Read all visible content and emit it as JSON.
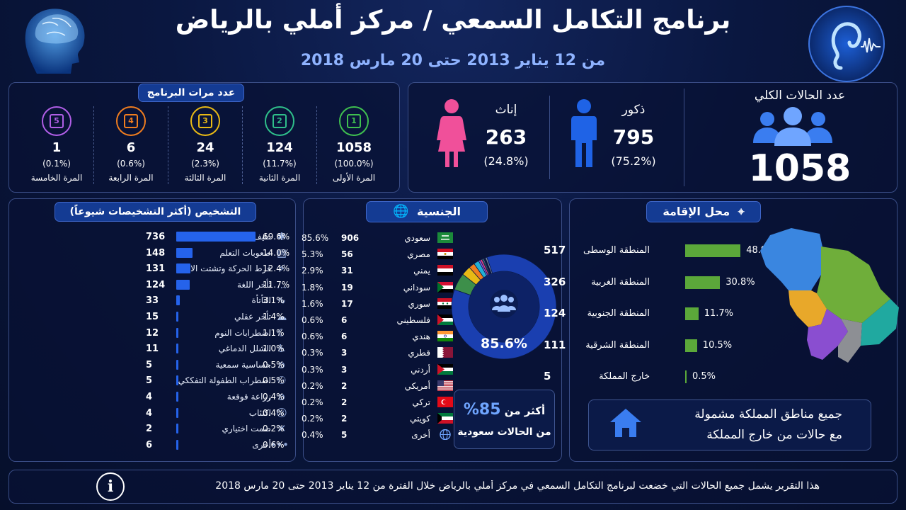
{
  "header": {
    "title": "برنامج التكامل السمعي / مركز أملي بالرياض",
    "subtitle": "من 12 يناير 2013 حتى 20 مارس 2018"
  },
  "rounds": {
    "title": "عدد مرات البرنامج",
    "items": [
      {
        "num": "1",
        "count": "1058",
        "pct": "(100.0%)",
        "label": "المرة الأولى",
        "color": "#3fbf4f"
      },
      {
        "num": "2",
        "count": "124",
        "pct": "(11.7%)",
        "label": "المرة الثانية",
        "color": "#2fbf8a"
      },
      {
        "num": "3",
        "count": "24",
        "pct": "(2.3%)",
        "label": "المرة الثالثة",
        "color": "#e8b915"
      },
      {
        "num": "4",
        "count": "6",
        "pct": "(0.6%)",
        "label": "المرة الرابعة",
        "color": "#f07d1f"
      },
      {
        "num": "5",
        "count": "1",
        "pct": "(0.1%)",
        "label": "المرة الخامسة",
        "color": "#b05ee6"
      }
    ]
  },
  "totals": {
    "total_label": "عدد الحالات الكلي",
    "total_value": "1058",
    "male_label": "ذكور",
    "male_value": "795",
    "male_pct": "(75.2%)",
    "female_label": "إناث",
    "female_value": "263",
    "female_pct": "(24.8%)",
    "male_color": "#1f63e6",
    "female_color": "#f0509a"
  },
  "diagnosis": {
    "title": "التشخيص (أكثر التشخيصات شيوعاً)",
    "rows": [
      {
        "label": "طيف التوحد",
        "value": 736,
        "pct": "69.6%",
        "icon": "puzzle-icon",
        "glyph": "✱"
      },
      {
        "label": "صعوبات التعلم",
        "value": 148,
        "pct": "14.0%",
        "icon": "book-icon",
        "glyph": "▤"
      },
      {
        "label": "فرط الحركة وتشتت الانتباه",
        "value": 131,
        "pct": "12.4%",
        "icon": "running-icon",
        "glyph": "⚡"
      },
      {
        "label": "تأخر اللغة",
        "value": 124,
        "pct": "11.7%",
        "icon": "speech-bubble-icon",
        "glyph": "…"
      },
      {
        "label": "التأتأة",
        "value": 33,
        "pct": "3.1%",
        "icon": "waveform-icon",
        "glyph": "∿"
      },
      {
        "label": "تأخر عقلي",
        "value": 15,
        "pct": "1.4%",
        "icon": "brain-icon",
        "glyph": "☁"
      },
      {
        "label": "اضطرابات النوم",
        "value": 12,
        "pct": "1.1%",
        "icon": "moon-icon",
        "glyph": "☾"
      },
      {
        "label": "الشلل الدماغي",
        "value": 11,
        "pct": "1.0%",
        "icon": "wheelchair-icon",
        "glyph": "♿"
      },
      {
        "label": "حساسية سمعية",
        "value": 5,
        "pct": "0.5%",
        "icon": "ear-icon",
        "glyph": "ʚ"
      },
      {
        "label": "اضطراب الطفولة التفككي",
        "value": 5,
        "pct": "0.5%",
        "icon": "family-icon",
        "glyph": "⚇"
      },
      {
        "label": "زراعة قوقعة",
        "value": 4,
        "pct": "0.4%",
        "icon": "cochlear-icon",
        "glyph": "ʚ"
      },
      {
        "label": "اكتئاب",
        "value": 4,
        "pct": "0.4%",
        "icon": "sad-face-icon",
        "glyph": "☹"
      },
      {
        "label": "صمت اختياري",
        "value": 2,
        "pct": "0.2%",
        "icon": "mute-icon",
        "glyph": "✕"
      },
      {
        "label": "أخرى",
        "value": 6,
        "pct": "0.6%",
        "icon": "more-icon",
        "glyph": "•••"
      }
    ]
  },
  "nationality": {
    "title": "الجنسية",
    "rows": [
      {
        "label": "سعودي",
        "value": "906",
        "pct": "85.6%",
        "flag": "saudi-flag-icon"
      },
      {
        "label": "مصري",
        "value": "56",
        "pct": "5.3%",
        "flag": "egypt-flag-icon"
      },
      {
        "label": "يمني",
        "value": "31",
        "pct": "2.9%",
        "flag": "yemen-flag-icon"
      },
      {
        "label": "سوداني",
        "value": "19",
        "pct": "1.8%",
        "flag": "sudan-flag-icon"
      },
      {
        "label": "سوري",
        "value": "17",
        "pct": "1.6%",
        "flag": "syria-flag-icon"
      },
      {
        "label": "فلسطيني",
        "value": "6",
        "pct": "0.6%",
        "flag": "palestine-flag-icon"
      },
      {
        "label": "هندي",
        "value": "6",
        "pct": "0.6%",
        "flag": "india-flag-icon"
      },
      {
        "label": "قطري",
        "value": "3",
        "pct": "0.3%",
        "flag": "qatar-flag-icon"
      },
      {
        "label": "أردني",
        "value": "3",
        "pct": "0.3%",
        "flag": "jordan-flag-icon"
      },
      {
        "label": "أمريكي",
        "value": "2",
        "pct": "0.2%",
        "flag": "usa-flag-icon"
      },
      {
        "label": "تركي",
        "value": "2",
        "pct": "0.2%",
        "flag": "turkey-flag-icon"
      },
      {
        "label": "كويتي",
        "value": "2",
        "pct": "0.2%",
        "flag": "kuwait-flag-icon"
      },
      {
        "label": "أخرى",
        "value": "5",
        "pct": "0.4%",
        "flag": "globe-icon"
      }
    ],
    "donut_center_label": "85.6%",
    "highlight_line1": "أكثر من",
    "highlight_value": "85%",
    "highlight_line2": "من الحالات سعودية"
  },
  "residence": {
    "title": "محل الإقامة",
    "rows": [
      {
        "label": "المنطقة الوسطى",
        "value": "517",
        "pct": "48.9%",
        "ratio": 0.489
      },
      {
        "label": "المنطقة الغربية",
        "value": "326",
        "pct": "30.8%",
        "ratio": 0.308
      },
      {
        "label": "المنطقة الجنوبية",
        "value": "124",
        "pct": "11.7%",
        "ratio": 0.117
      },
      {
        "label": "المنطقة الشرقية",
        "value": "111",
        "pct": "10.5%",
        "ratio": 0.105
      },
      {
        "label": "خارج المملكة",
        "value": "5",
        "pct": "0.5%",
        "ratio": 0.005
      }
    ],
    "note_line1": "جميع مناطق المملكة مشمولة",
    "note_line2": "مع حالات من خارج المملكة"
  },
  "footer": {
    "text": "هذا التقرير يشمل جميع الحالات التي خضعت لبرنامج التكامل السمعي في مركز أملي بالرياض خلال الفترة من 12 يناير 2013 حتى 20 مارس 2018"
  },
  "chart_data": [
    {
      "type": "bar",
      "title": "التشخيص (أكثر التشخيصات شيوعاً)",
      "categories": [
        "طيف التوحد",
        "صعوبات التعلم",
        "فرط الحركة وتشتت الانتباه",
        "تأخر اللغة",
        "التأتأة",
        "تأخر عقلي",
        "اضطرابات النوم",
        "الشلل الدماغي",
        "حساسية سمعية",
        "اضطراب الطفولة التفككي",
        "زراعة قوقعة",
        "اكتئاب",
        "صمت اختياري",
        "أخرى"
      ],
      "values": [
        736,
        148,
        131,
        124,
        33,
        15,
        12,
        11,
        5,
        5,
        4,
        4,
        2,
        6
      ],
      "percent": [
        69.6,
        14.0,
        12.4,
        11.7,
        3.1,
        1.4,
        1.1,
        1.0,
        0.5,
        0.5,
        0.4,
        0.4,
        0.2,
        0.6
      ],
      "orientation": "horizontal"
    },
    {
      "type": "pie",
      "title": "الجنسية",
      "categories": [
        "سعودي",
        "مصري",
        "يمني",
        "سوداني",
        "سوري",
        "فلسطيني",
        "هندي",
        "قطري",
        "أردني",
        "أمريكي",
        "تركي",
        "كويتي",
        "أخرى"
      ],
      "values": [
        906,
        56,
        31,
        19,
        17,
        6,
        6,
        3,
        3,
        2,
        2,
        2,
        5
      ],
      "percent": [
        85.6,
        5.3,
        2.9,
        1.8,
        1.6,
        0.6,
        0.6,
        0.3,
        0.3,
        0.2,
        0.2,
        0.2,
        0.4
      ],
      "colors": [
        "#1a3fb0",
        "#3d8f4a",
        "#e8b915",
        "#f07d1f",
        "#22aed6",
        "#8a5ee6",
        "#e83f8a",
        "#2fbf8a",
        "#cfd8e8",
        "#5a7be0",
        "#d0453a",
        "#9bd34a",
        "#7a8aa8"
      ]
    },
    {
      "type": "bar",
      "title": "محل الإقامة",
      "categories": [
        "المنطقة الوسطى",
        "المنطقة الغربية",
        "المنطقة الجنوبية",
        "المنطقة الشرقية",
        "خارج المملكة"
      ],
      "values": [
        517,
        326,
        124,
        111,
        5
      ],
      "percent": [
        48.9,
        30.8,
        11.7,
        10.5,
        0.5
      ],
      "orientation": "horizontal"
    }
  ]
}
